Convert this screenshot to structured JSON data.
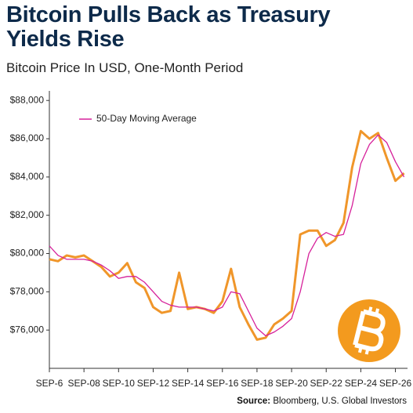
{
  "chart_data": {
    "type": "line",
    "title": "Bitcoin Pulls Back as Treasury Yields Rise",
    "subtitle": "Bitcoin Price In USD, One-Month Period",
    "source_label": "Source:",
    "source_text": "Bloomberg, U.S. Global Investors",
    "x": [
      6,
      6.5,
      7,
      7.5,
      8,
      8.5,
      9,
      9.5,
      10,
      10.5,
      11,
      11.5,
      12,
      12.5,
      13,
      13.5,
      14,
      14.5,
      15,
      15.5,
      16,
      16.5,
      17,
      17.5,
      18,
      18.5,
      19,
      19.5,
      20,
      20.5,
      21,
      21.5,
      22,
      22.5,
      23,
      23.5,
      24,
      24.5,
      25,
      25.5,
      26,
      26.5
    ],
    "xlim": [
      6,
      26.7
    ],
    "xticks": [
      {
        "value": 6,
        "label": "SEP-6"
      },
      {
        "value": 8,
        "label": "SEP-08"
      },
      {
        "value": 10,
        "label": "SEP-10"
      },
      {
        "value": 12,
        "label": "SEP-12"
      },
      {
        "value": 14,
        "label": "SEP-14"
      },
      {
        "value": 16,
        "label": "SEP-16"
      },
      {
        "value": 18,
        "label": "SEP-18"
      },
      {
        "value": 20,
        "label": "SEP-20"
      },
      {
        "value": 22,
        "label": "SEP-22"
      },
      {
        "value": 24,
        "label": "SEP-24"
      },
      {
        "value": 26,
        "label": "SEP-26"
      }
    ],
    "ylim": [
      74000,
      88500
    ],
    "yticks": [
      {
        "value": 76000,
        "label": "$76,000"
      },
      {
        "value": 78000,
        "label": "$78,000"
      },
      {
        "value": 80000,
        "label": "$80,000"
      },
      {
        "value": 82000,
        "label": "$82,000"
      },
      {
        "value": 84000,
        "label": "$84,000"
      },
      {
        "value": 86000,
        "label": "$86,000"
      },
      {
        "value": 88000,
        "label": "$88,000"
      }
    ],
    "legend": "top-left",
    "series": [
      {
        "color": "#f0962a",
        "values": [
          79700,
          79600,
          79900,
          79800,
          79900,
          79600,
          79300,
          78800,
          79000,
          79500,
          78500,
          78200,
          77200,
          76900,
          77000,
          79000,
          77100,
          77200,
          77100,
          76900,
          77500,
          79200,
          77200,
          76300,
          75500,
          75600,
          76300,
          76600,
          77000,
          81000,
          81200,
          81200,
          80400,
          80700,
          81600,
          84500,
          86400,
          86000,
          86300,
          85000,
          83800,
          84200
        ]
      },
      {
        "name": "50-Day Moving Average",
        "color": "#d6209a",
        "values": [
          80400,
          79900,
          79700,
          79700,
          79700,
          79600,
          79400,
          79100,
          78700,
          78800,
          78800,
          78500,
          78000,
          77500,
          77300,
          77200,
          77200,
          77200,
          77100,
          77000,
          77200,
          78000,
          77900,
          77000,
          76100,
          75700,
          75900,
          76200,
          76600,
          78000,
          80000,
          80800,
          81100,
          80900,
          81000,
          82500,
          84700,
          85700,
          86200,
          85800,
          84800,
          84000
        ]
      }
    ]
  }
}
